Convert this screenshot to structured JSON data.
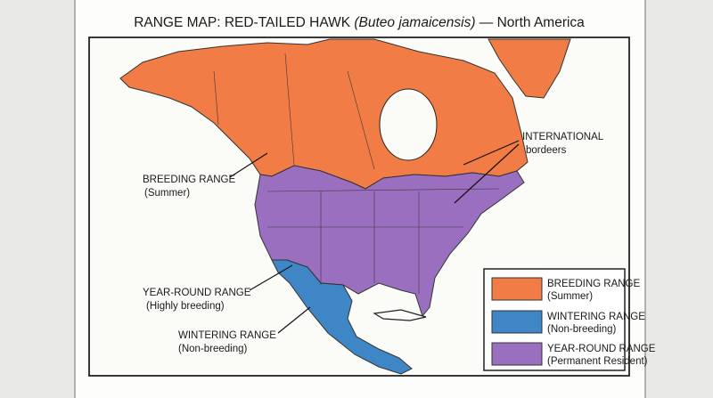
{
  "title": {
    "prefix": "RANGE MAP: RED-TAILED HAWK",
    "scientific": "(Buteo jamaicensis)",
    "suffix": "— North America"
  },
  "annotations": [
    {
      "label": "INTERNATIONAL",
      "sublabel": "bordeers"
    },
    {
      "label": "BREEDING RANGE",
      "sublabel": "(Summer)"
    },
    {
      "label": "YEAR-ROUND RANGE",
      "sublabel": "(Highly breeding)"
    },
    {
      "label": "WINTERING RANGE",
      "sublabel": "(Non-breeding)"
    }
  ],
  "legend": [
    {
      "label": "BREEDING RANGE",
      "sublabel": "(Summer)"
    },
    {
      "label": "WINTERING RANGE",
      "sublabel": "(Non-breeding)"
    },
    {
      "label": "YEAR-ROUND RANGE",
      "sublabel": "(Permanent Resident)"
    }
  ]
}
